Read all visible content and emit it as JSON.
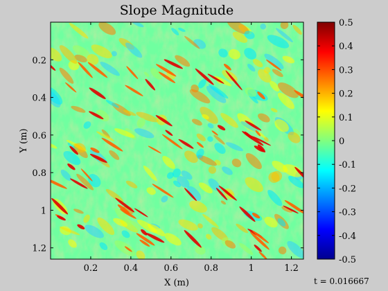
{
  "chart_data": {
    "type": "heatmap",
    "title": "Slope Magnitude",
    "xlabel": "X (m)",
    "ylabel": "Y (m)",
    "xlim": [
      0,
      1.26
    ],
    "ylim": [
      0,
      1.26
    ],
    "y_axis_reversed": true,
    "x_ticks": [
      "0.2",
      "0.4",
      "0.6",
      "0.8",
      "1",
      "1.2"
    ],
    "x_tick_values": [
      0.2,
      0.4,
      0.6,
      0.8,
      1.0,
      1.2
    ],
    "y_ticks": [
      "0.2",
      "0.4",
      "0.6",
      "0.8",
      "1",
      "1.2"
    ],
    "y_tick_values": [
      0.2,
      0.4,
      0.6,
      0.8,
      1.0,
      1.2
    ],
    "colorbar": {
      "colormap": "jet",
      "min": -0.5,
      "max": 0.5,
      "ticks": [
        "0.5",
        "0.4",
        "0.3",
        "0.2",
        "0.1",
        "0",
        "-0.1",
        "-0.2",
        "-0.3",
        "-0.4",
        "-0.5"
      ],
      "tick_values": [
        0.5,
        0.4,
        0.3,
        0.2,
        0.1,
        0,
        -0.1,
        -0.2,
        -0.3,
        -0.4,
        -0.5
      ]
    },
    "background_value": 0.0,
    "grid": false
  },
  "footer": {
    "time_label": "t = 0.016667"
  },
  "colors": {
    "figure_bg": "#cccccc",
    "axes_border": "#000000"
  }
}
